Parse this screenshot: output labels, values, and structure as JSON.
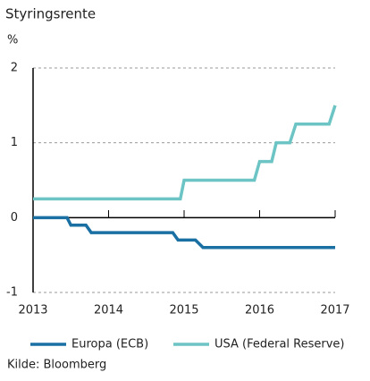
{
  "chart_data": {
    "type": "line",
    "title": "Styringsrente",
    "y_label": "%",
    "xlim": [
      2013,
      2017
    ],
    "xticks": [
      2013,
      2014,
      2015,
      2016,
      2017
    ],
    "ylim": [
      -1,
      2
    ],
    "yticks": [
      -1,
      0,
      1,
      2
    ],
    "grid": true,
    "source": "Kilde: Bloomberg",
    "series": [
      {
        "name": "Europa (ECB)",
        "color": "#1a6fa3",
        "x": [
          2013,
          2013.45,
          2013.5,
          2013.7,
          2013.77,
          2014.85,
          2014.92,
          2015.15,
          2015.25,
          2017
        ],
        "values": [
          0,
          0,
          -0.1,
          -0.1,
          -0.2,
          -0.2,
          -0.3,
          -0.3,
          -0.4,
          -0.4
        ]
      },
      {
        "name": "USA (Federal Reserve)",
        "color": "#6cc4c4",
        "x": [
          2013,
          2014.95,
          2015.0,
          2015.93,
          2016.0,
          2016.16,
          2016.22,
          2016.4,
          2016.48,
          2016.92,
          2017
        ],
        "values": [
          0.25,
          0.25,
          0.5,
          0.5,
          0.75,
          0.75,
          1.0,
          1.0,
          1.25,
          1.25,
          1.5
        ]
      }
    ]
  }
}
